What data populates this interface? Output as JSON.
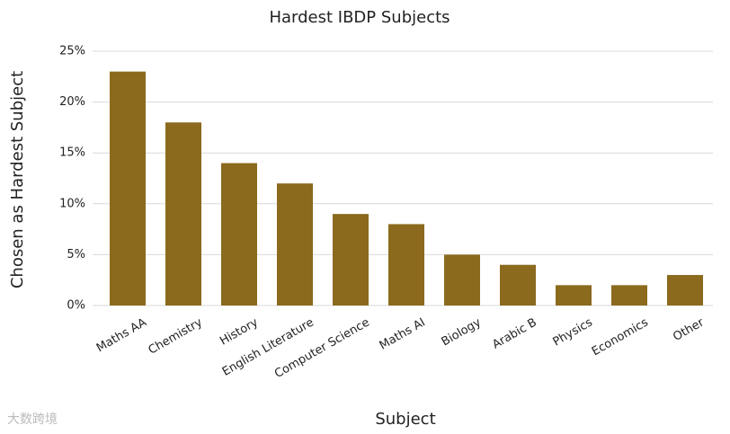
{
  "chart_data": {
    "type": "bar",
    "title": "Hardest IBDP Subjects",
    "x_label": "Subject",
    "y_label": "Chosen as Hardest Subject",
    "categories": [
      "Maths AA",
      "Chemistry",
      "History",
      "English Literature",
      "Computer Science",
      "Maths AI",
      "Biology",
      "Arabic B",
      "Physics",
      "Economics",
      "Other"
    ],
    "values": [
      23,
      18,
      14,
      12,
      9,
      8,
      5,
      4,
      2,
      2,
      3
    ],
    "color": "#8b6a1e",
    "ylim": [
      0,
      25
    ],
    "yticks": [
      {
        "value": 0,
        "label": "0%"
      },
      {
        "value": 5,
        "label": "5%"
      },
      {
        "value": 10,
        "label": "10%"
      },
      {
        "value": 15,
        "label": "15%"
      },
      {
        "value": 20,
        "label": "20%"
      },
      {
        "value": 25,
        "label": "25%"
      }
    ],
    "grid": true
  },
  "watermark": "大数跨境"
}
